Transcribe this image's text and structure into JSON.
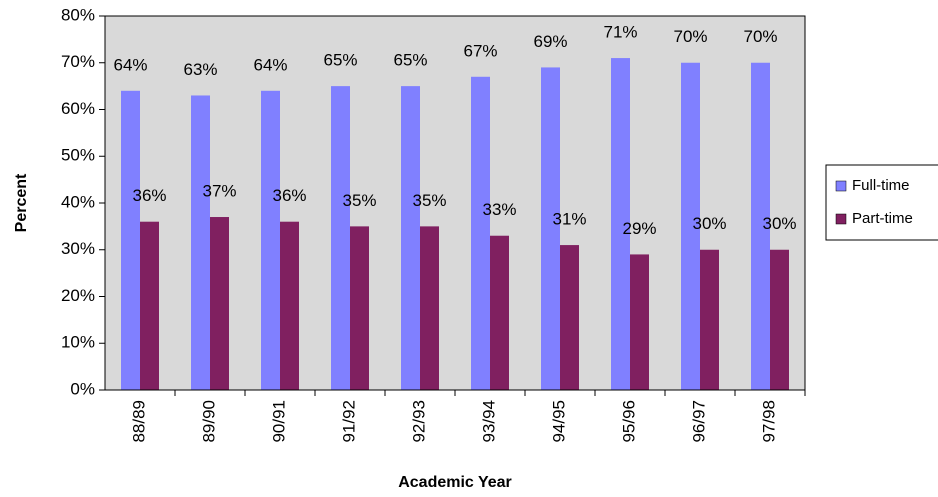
{
  "chart_data": {
    "type": "bar",
    "x_label": "Academic Year",
    "y_label": "Percent",
    "categories": [
      "88/89",
      "89/90",
      "90/91",
      "91/92",
      "92/93",
      "93/94",
      "94/95",
      "95/96",
      "96/97",
      "97/98"
    ],
    "series": [
      {
        "name": "Full-time",
        "color": "#8080ff",
        "values": [
          64,
          63,
          64,
          65,
          65,
          67,
          69,
          71,
          70,
          70
        ],
        "value_labels": [
          "64%",
          "63%",
          "64%",
          "65%",
          "65%",
          "67%",
          "69%",
          "71%",
          "70%",
          "70%"
        ]
      },
      {
        "name": "Part-time",
        "color": "#802060",
        "values": [
          36,
          37,
          36,
          35,
          35,
          33,
          31,
          29,
          30,
          30
        ],
        "value_labels": [
          "36%",
          "37%",
          "36%",
          "35%",
          "35%",
          "33%",
          "31%",
          "29%",
          "30%",
          "30%"
        ]
      }
    ],
    "ylim": [
      0,
      80
    ],
    "yticks": [
      {
        "value": 0,
        "label": "0%"
      },
      {
        "value": 10,
        "label": "10%"
      },
      {
        "value": 20,
        "label": "20%"
      },
      {
        "value": 30,
        "label": "30%"
      },
      {
        "value": 40,
        "label": "40%"
      },
      {
        "value": 50,
        "label": "50%"
      },
      {
        "value": 60,
        "label": "60%"
      },
      {
        "value": 70,
        "label": "70%"
      },
      {
        "value": 80,
        "label": "80%"
      }
    ],
    "plot_background": "#d9d9d9",
    "legend": "right"
  }
}
